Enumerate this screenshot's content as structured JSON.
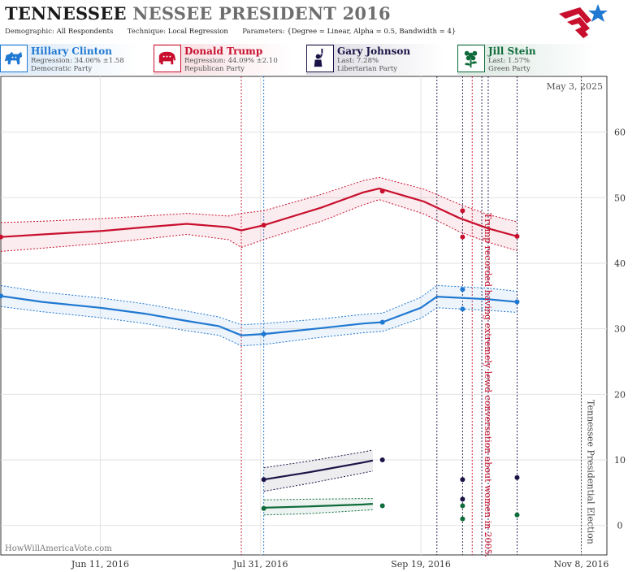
{
  "header": {
    "title_state": "TENNESSEE",
    "title_rest": "NESSEE PRESIDENT 2016",
    "demographic_label": "Demographic:",
    "demographic_value": "All Respondents",
    "technique_label": "Technique:",
    "technique_value": "Local Regression",
    "parameters_label": "Parameters:",
    "parameters_value": "{Degree = Linear, Alpha = 0.5, Bandwidth = 4}"
  },
  "logo": {
    "icon": "star-flag-logo-icon"
  },
  "candidates": [
    {
      "name": "Hillary Clinton",
      "stat": "Regression: 34.06% ±1.58",
      "party": "Democratic Party",
      "color": "#1f78d1",
      "icon": "donkey-icon"
    },
    {
      "name": "Donald Trump",
      "stat": "Regression: 44.09% ±2.10",
      "party": "Republican Party",
      "color": "#c8102e",
      "icon": "elephant-icon"
    },
    {
      "name": "Gary Johnson",
      "stat": "Last: 7.28%",
      "party": "Libertarian Party",
      "color": "#1a1446",
      "icon": "liberty-torch-icon"
    },
    {
      "name": "Jill Stein",
      "stat": "Last: 1.57%",
      "party": "Green Party",
      "color": "#0e6b3a",
      "icon": "flower-icon"
    }
  ],
  "chart_data": {
    "type": "line",
    "date_stamp": "May 3, 2025",
    "watermark": "HowWillAmericaVote.com",
    "x_ticks": [
      "Jun 11, 2016",
      "Jul 31, 2016",
      "Sep 19, 2016",
      "Nov 8, 2016"
    ],
    "y_ticks": [
      0,
      10,
      20,
      30,
      40,
      50,
      60
    ],
    "ylim": [
      -4.5,
      68.5
    ],
    "xlim": [
      "2016-05-11",
      "2016-11-16"
    ],
    "grid": true,
    "annotations": [
      {
        "text": "Trump recorded having extremely lewd conversation about women in 2005.",
        "date": "2016-10-07",
        "color": "#c8102e"
      },
      {
        "text": "Tennessee Presidential Election",
        "date": "2016-11-08",
        "color": "#444444"
      }
    ],
    "event_lines": [
      {
        "date": "2016-07-25",
        "color": "#c8102e"
      },
      {
        "date": "2016-08-01",
        "color": "#1f78d1"
      },
      {
        "date": "2016-09-24",
        "color": "#1a1446"
      },
      {
        "date": "2016-10-02",
        "color": "#1a1446"
      },
      {
        "date": "2016-10-05",
        "color": "#c8102e"
      },
      {
        "date": "2016-10-08",
        "color": "#1a1446"
      },
      {
        "date": "2016-10-10",
        "color": "#1a1446"
      },
      {
        "date": "2016-10-19",
        "color": "#1a1446"
      },
      {
        "date": "2016-11-08",
        "color": "#444444"
      }
    ],
    "series": [
      {
        "name": "Donald Trump",
        "color": "#c8102e",
        "x": [
          "2016-05-11",
          "2016-05-24",
          "2016-06-11",
          "2016-06-25",
          "2016-07-08",
          "2016-07-21",
          "2016-07-25",
          "2016-08-01",
          "2016-08-19",
          "2016-09-01",
          "2016-09-06",
          "2016-09-20",
          "2016-10-01",
          "2016-10-10",
          "2016-10-19"
        ],
        "y": [
          44.0,
          44.4,
          44.9,
          45.5,
          46.0,
          45.5,
          45.0,
          45.8,
          48.5,
          50.8,
          51.4,
          49.4,
          46.9,
          45.3,
          44.1
        ],
        "upper": [
          46.2,
          46.4,
          46.8,
          47.2,
          47.6,
          47.2,
          47.6,
          48.0,
          50.5,
          52.6,
          53.1,
          51.3,
          49.0,
          47.4,
          46.3
        ],
        "lower": [
          41.8,
          42.3,
          43.0,
          43.7,
          44.4,
          43.6,
          42.4,
          43.6,
          46.4,
          48.9,
          49.7,
          47.5,
          44.8,
          43.2,
          41.9
        ],
        "points": [
          {
            "x": "2016-05-11",
            "y": 44.0
          },
          {
            "x": "2016-08-01",
            "y": 45.8
          },
          {
            "x": "2016-09-07",
            "y": 51.0
          },
          {
            "x": "2016-10-02",
            "y": 48.0
          },
          {
            "x": "2016-10-02",
            "y": 44.0
          },
          {
            "x": "2016-10-19",
            "y": 44.1
          }
        ]
      },
      {
        "name": "Hillary Clinton",
        "color": "#1f78d1",
        "x": [
          "2016-05-11",
          "2016-05-24",
          "2016-06-11",
          "2016-06-25",
          "2016-07-08",
          "2016-07-18",
          "2016-07-25",
          "2016-08-01",
          "2016-08-19",
          "2016-09-01",
          "2016-09-07",
          "2016-09-19",
          "2016-09-24",
          "2016-10-10",
          "2016-10-19"
        ],
        "y": [
          35.0,
          34.1,
          33.2,
          32.3,
          31.2,
          30.4,
          29.0,
          29.2,
          30.1,
          30.8,
          31.0,
          33.2,
          34.9,
          34.5,
          34.1
        ],
        "upper": [
          36.6,
          35.6,
          34.7,
          33.8,
          32.7,
          31.8,
          30.6,
          30.8,
          31.5,
          32.2,
          32.4,
          34.8,
          36.6,
          36.2,
          35.7
        ],
        "lower": [
          33.4,
          32.6,
          31.7,
          30.8,
          29.7,
          29.0,
          27.4,
          27.6,
          28.7,
          29.4,
          29.6,
          31.6,
          33.2,
          32.8,
          32.5
        ],
        "points": [
          {
            "x": "2016-05-11",
            "y": 35.0
          },
          {
            "x": "2016-08-01",
            "y": 29.2
          },
          {
            "x": "2016-09-07",
            "y": 31.0
          },
          {
            "x": "2016-10-02",
            "y": 36.0
          },
          {
            "x": "2016-10-02",
            "y": 33.0
          },
          {
            "x": "2016-10-19",
            "y": 34.1
          }
        ]
      },
      {
        "name": "Gary Johnson",
        "color": "#1a1446",
        "x": [
          "2016-08-01",
          "2016-08-15",
          "2016-09-01",
          "2016-09-04"
        ],
        "y": [
          7.0,
          8.1,
          9.6,
          9.9
        ],
        "upper": [
          8.8,
          9.8,
          11.2,
          11.5
        ],
        "lower": [
          5.2,
          6.4,
          8.0,
          8.3
        ],
        "points": [
          {
            "x": "2016-08-01",
            "y": 7.0
          },
          {
            "x": "2016-09-07",
            "y": 10.0
          },
          {
            "x": "2016-10-02",
            "y": 7.0
          },
          {
            "x": "2016-10-02",
            "y": 4.0
          },
          {
            "x": "2016-10-19",
            "y": 7.3
          }
        ]
      },
      {
        "name": "Jill Stein",
        "color": "#0e6b3a",
        "x": [
          "2016-08-01",
          "2016-08-15",
          "2016-09-01",
          "2016-09-04"
        ],
        "y": [
          2.7,
          2.9,
          3.2,
          3.3
        ],
        "upper": [
          3.9,
          4.0,
          4.1,
          4.1
        ],
        "lower": [
          1.6,
          1.8,
          2.3,
          2.4
        ],
        "points": [
          {
            "x": "2016-08-01",
            "y": 2.6
          },
          {
            "x": "2016-09-07",
            "y": 3.0
          },
          {
            "x": "2016-10-02",
            "y": 3.0
          },
          {
            "x": "2016-10-02",
            "y": 1.0
          },
          {
            "x": "2016-10-19",
            "y": 1.6
          }
        ]
      }
    ]
  }
}
